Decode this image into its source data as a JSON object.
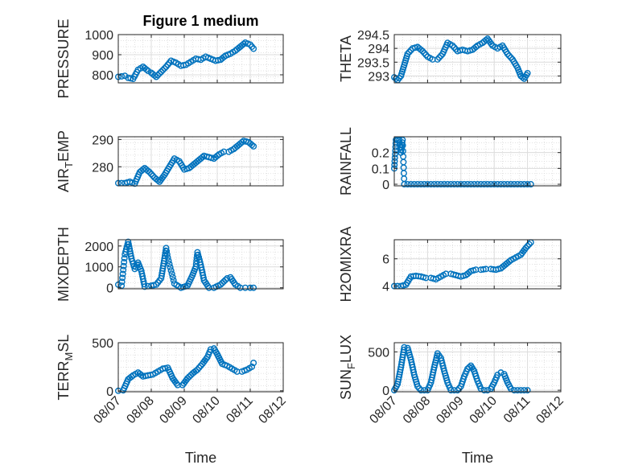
{
  "chart_data": [
    {
      "type": "scatter",
      "title": "Figure 1 medium",
      "ylabel": "PRESSURE",
      "xlabel": "",
      "ylim": [
        760,
        1000
      ],
      "yticks": [
        800,
        900,
        1000
      ],
      "ytick_labels": [
        "800",
        "900",
        "1000"
      ],
      "xlim": [
        "08/07",
        "08/12"
      ],
      "xticks": [
        "08/07",
        "08/08",
        "08/09",
        "08/10",
        "08/11",
        "08/12"
      ],
      "grid": true,
      "marker": "open-circle",
      "series": [
        {
          "x": [
            0.0,
            0.2,
            0.3,
            0.45,
            0.6,
            0.75,
            0.9,
            1.0,
            1.15,
            1.3,
            1.45,
            1.6,
            1.75,
            1.9,
            2.05,
            2.2,
            2.35,
            2.5,
            2.65,
            2.8,
            2.95,
            3.1,
            3.25,
            3.4,
            3.55,
            3.7,
            3.85,
            4.0,
            4.1
          ],
          "values": [
            790,
            795,
            785,
            780,
            825,
            840,
            820,
            810,
            790,
            815,
            840,
            870,
            860,
            845,
            850,
            865,
            880,
            875,
            890,
            880,
            870,
            875,
            895,
            905,
            920,
            940,
            960,
            950,
            930
          ]
        }
      ]
    },
    {
      "type": "scatter",
      "title": "",
      "ylabel": "THETA",
      "xlabel": "",
      "ylim": [
        292.75,
        294.5
      ],
      "yticks": [
        293,
        293.5,
        294,
        294.5
      ],
      "ytick_labels": [
        "293",
        "293.5",
        "294",
        "294.5"
      ],
      "xlim": [
        "08/07",
        "08/12"
      ],
      "xticks": [
        "08/07",
        "08/08",
        "08/09",
        "08/10",
        "08/11",
        "08/12"
      ],
      "grid": true,
      "marker": "open-circle",
      "series": [
        {
          "x": [
            0.0,
            0.1,
            0.2,
            0.3,
            0.4,
            0.55,
            0.7,
            0.85,
            1.0,
            1.15,
            1.3,
            1.45,
            1.6,
            1.75,
            1.9,
            2.05,
            2.2,
            2.35,
            2.5,
            2.65,
            2.8,
            2.95,
            3.1,
            3.25,
            3.4,
            3.55,
            3.7,
            3.8,
            3.9,
            4.0
          ],
          "values": [
            292.95,
            292.85,
            293.0,
            293.4,
            293.8,
            294.0,
            294.05,
            293.9,
            293.7,
            293.6,
            293.6,
            293.8,
            294.2,
            294.1,
            293.9,
            293.95,
            293.9,
            293.95,
            294.1,
            294.2,
            294.35,
            294.1,
            294.0,
            294.1,
            293.8,
            293.6,
            293.3,
            293.0,
            292.9,
            293.1
          ]
        }
      ]
    },
    {
      "type": "scatter",
      "title": "",
      "ylabel": "AIR_TEMP",
      "xlabel": "",
      "ylim": [
        273,
        291
      ],
      "yticks": [
        280,
        290
      ],
      "ytick_labels": [
        "280",
        "290"
      ],
      "xlim": [
        "08/07",
        "08/12"
      ],
      "xticks": [
        "08/07",
        "08/08",
        "08/09",
        "08/10",
        "08/11",
        "08/12"
      ],
      "grid": true,
      "marker": "open-circle",
      "series": [
        {
          "x": [
            0.0,
            0.2,
            0.35,
            0.5,
            0.65,
            0.8,
            0.95,
            1.1,
            1.25,
            1.4,
            1.55,
            1.7,
            1.85,
            2.0,
            2.15,
            2.3,
            2.45,
            2.6,
            2.75,
            2.9,
            3.05,
            3.2,
            3.35,
            3.5,
            3.65,
            3.8,
            3.95,
            4.1
          ],
          "values": [
            274,
            274,
            274.5,
            273.8,
            278,
            279.5,
            278,
            276,
            274.5,
            277,
            280,
            283,
            282,
            279,
            279.5,
            281,
            282.5,
            284,
            283.5,
            283,
            284.5,
            285.5,
            285.5,
            286.5,
            288,
            289.5,
            289,
            287.5
          ]
        }
      ]
    },
    {
      "type": "scatter",
      "title": "",
      "ylabel": "RAINFALL",
      "xlabel": "",
      "ylim": [
        -0.01,
        0.3
      ],
      "yticks": [
        0,
        0.1,
        0.2
      ],
      "ytick_labels": [
        "0",
        "0.1",
        "0.2"
      ],
      "xlim": [
        "08/07",
        "08/12"
      ],
      "xticks": [
        "08/07",
        "08/08",
        "08/09",
        "08/10",
        "08/11",
        "08/12"
      ],
      "grid": true,
      "marker": "open-circle",
      "series": [
        {
          "x": [
            0.0,
            0.05,
            0.1,
            0.15,
            0.2,
            0.25,
            0.3,
            0.4,
            0.6,
            0.8,
            1.0,
            1.2,
            1.4,
            1.6,
            1.8,
            2.0,
            2.2,
            2.4,
            2.6,
            2.8,
            3.0,
            3.2,
            3.4,
            3.6,
            3.8,
            4.0,
            4.1
          ],
          "values": [
            0.1,
            0.28,
            0.28,
            0.28,
            0.2,
            0.28,
            0.0,
            0.0,
            0.0,
            0.0,
            0.0,
            0.0,
            0.0,
            0.0,
            0.0,
            0.0,
            0.0,
            0.0,
            0.0,
            0.0,
            0.0,
            0.0,
            0.0,
            0.0,
            0.0,
            0.0,
            0.0
          ]
        }
      ]
    },
    {
      "type": "scatter",
      "title": "",
      "ylabel": "MIXDEPTH",
      "xlabel": "",
      "ylim": [
        -50,
        2300
      ],
      "yticks": [
        0,
        1000,
        2000
      ],
      "ytick_labels": [
        "0",
        "1000",
        "2000"
      ],
      "xlim": [
        "08/07",
        "08/12"
      ],
      "xticks": [
        "08/07",
        "08/08",
        "08/09",
        "08/10",
        "08/11",
        "08/12"
      ],
      "grid": true,
      "marker": "open-circle",
      "series": [
        {
          "x": [
            0.0,
            0.1,
            0.2,
            0.3,
            0.4,
            0.5,
            0.6,
            0.7,
            0.8,
            1.0,
            1.15,
            1.3,
            1.4,
            1.45,
            1.5,
            1.7,
            1.9,
            2.1,
            2.25,
            2.35,
            2.4,
            2.5,
            2.6,
            2.75,
            2.9,
            3.1,
            3.2,
            3.3,
            3.4,
            3.55,
            3.7,
            3.85,
            4.0,
            4.1
          ],
          "values": [
            150,
            100,
            1600,
            2200,
            1400,
            900,
            1200,
            800,
            50,
            100,
            150,
            450,
            1400,
            1900,
            1450,
            200,
            0,
            100,
            600,
            1000,
            1700,
            1100,
            350,
            0,
            0,
            150,
            300,
            450,
            500,
            150,
            0,
            0,
            0,
            0
          ]
        }
      ]
    },
    {
      "type": "scatter",
      "title": "",
      "ylabel": "H2OMIXRA",
      "xlabel": "",
      "ylim": [
        3.8,
        7.4
      ],
      "yticks": [
        4,
        6
      ],
      "ytick_labels": [
        "4",
        "6"
      ],
      "xlim": [
        "08/07",
        "08/12"
      ],
      "xticks": [
        "08/07",
        "08/08",
        "08/09",
        "08/10",
        "08/11",
        "08/12"
      ],
      "grid": true,
      "marker": "open-circle",
      "series": [
        {
          "x": [
            0.0,
            0.2,
            0.35,
            0.5,
            0.65,
            0.8,
            0.95,
            1.1,
            1.25,
            1.4,
            1.55,
            1.7,
            1.85,
            2.0,
            2.15,
            2.3,
            2.45,
            2.6,
            2.75,
            2.9,
            3.05,
            3.2,
            3.35,
            3.5,
            3.65,
            3.8,
            3.95,
            4.1
          ],
          "values": [
            4.0,
            4.0,
            4.1,
            4.7,
            4.75,
            4.7,
            4.6,
            4.6,
            4.5,
            4.7,
            4.9,
            4.9,
            4.8,
            4.7,
            4.8,
            5.1,
            5.2,
            5.2,
            5.25,
            5.25,
            5.2,
            5.3,
            5.6,
            5.9,
            6.1,
            6.3,
            6.8,
            7.2
          ]
        }
      ]
    },
    {
      "type": "scatter",
      "title": "",
      "ylabel": "TERR_MSL",
      "xlabel": "Time",
      "ylim": [
        -10,
        500
      ],
      "yticks": [
        0,
        500
      ],
      "ytick_labels": [
        "0",
        "500"
      ],
      "xlim": [
        "08/07",
        "08/12"
      ],
      "xticks": [
        "08/07",
        "08/08",
        "08/09",
        "08/10",
        "08/11",
        "08/12"
      ],
      "grid": true,
      "marker": "open-circle",
      "series": [
        {
          "x": [
            0.0,
            0.15,
            0.3,
            0.45,
            0.6,
            0.75,
            0.9,
            1.05,
            1.2,
            1.35,
            1.5,
            1.65,
            1.8,
            1.95,
            2.1,
            2.25,
            2.4,
            2.55,
            2.7,
            2.8,
            2.9,
            3.0,
            3.15,
            3.3,
            3.45,
            3.6,
            3.75,
            3.9,
            4.05,
            4.1
          ],
          "values": [
            0,
            5,
            120,
            160,
            190,
            150,
            160,
            170,
            200,
            230,
            240,
            130,
            60,
            60,
            130,
            180,
            220,
            280,
            350,
            430,
            440,
            380,
            280,
            260,
            230,
            200,
            200,
            220,
            250,
            290
          ]
        }
      ]
    },
    {
      "type": "scatter",
      "title": "",
      "ylabel": "SUN_FLUX",
      "xlabel": "Time",
      "ylim": [
        -20,
        620
      ],
      "yticks": [
        0,
        500
      ],
      "ytick_labels": [
        "0",
        "500"
      ],
      "xlim": [
        "08/07",
        "08/12"
      ],
      "xticks": [
        "08/07",
        "08/08",
        "08/09",
        "08/10",
        "08/11",
        "08/12"
      ],
      "grid": true,
      "marker": "open-circle",
      "series": [
        {
          "x": [
            0.0,
            0.1,
            0.2,
            0.3,
            0.4,
            0.5,
            0.6,
            0.7,
            0.8,
            0.9,
            1.0,
            1.1,
            1.2,
            1.3,
            1.4,
            1.5,
            1.6,
            1.7,
            1.8,
            1.9,
            2.0,
            2.1,
            2.2,
            2.3,
            2.4,
            2.5,
            2.6,
            2.7,
            2.8,
            2.9,
            3.0,
            3.1,
            3.2,
            3.3,
            3.4,
            3.5,
            3.6,
            3.7,
            3.8,
            3.9,
            4.0
          ],
          "values": [
            0,
            80,
            300,
            560,
            550,
            400,
            200,
            50,
            0,
            0,
            0,
            100,
            300,
            480,
            420,
            250,
            100,
            0,
            0,
            0,
            50,
            180,
            280,
            320,
            250,
            120,
            20,
            0,
            0,
            20,
            100,
            200,
            230,
            210,
            100,
            20,
            0,
            0,
            0,
            0,
            0
          ]
        }
      ]
    }
  ]
}
